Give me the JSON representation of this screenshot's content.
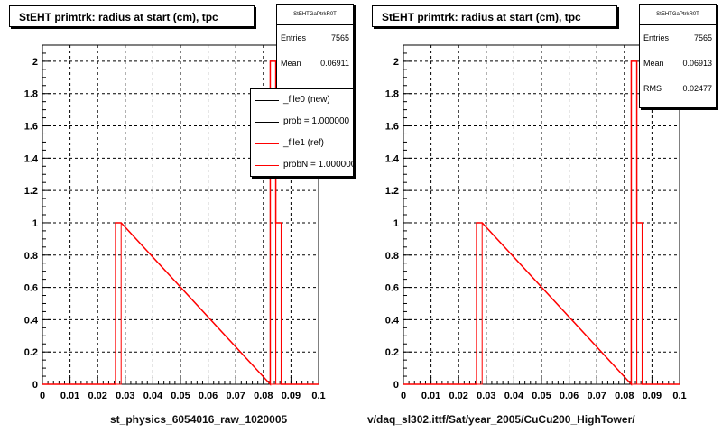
{
  "colors": {
    "reference_hist": "#ff0000",
    "new_hist": "#000000",
    "grid": "#000000",
    "background": "#ffffff"
  },
  "panels": [
    {
      "title": "StEHT primtrk: radius at start (cm), tpc",
      "stats": {
        "name": "StEHTGaPtrkR0T",
        "rows": [
          {
            "label": "Entries",
            "value": "7565"
          },
          {
            "label": "Mean",
            "value": "0.06911"
          }
        ]
      },
      "legend": [
        {
          "label": "_file0 (new)",
          "color": "#000000"
        },
        {
          "label": "prob = 1.000000",
          "color": "#000000"
        },
        {
          "label": "_file1 (ref)",
          "color": "#ff0000"
        },
        {
          "label": "probN = 1.000000",
          "color": "#ff0000"
        }
      ],
      "xlabel": "st_physics_6054016_raw_1020005"
    },
    {
      "title": "StEHT primtrk: radius at start (cm), tpc",
      "stats": {
        "name": "StEHTGaPtrkR0T",
        "rows": [
          {
            "label": "Entries",
            "value": "7565"
          },
          {
            "label": "Mean",
            "value": "0.06913"
          },
          {
            "label": "RMS",
            "value": "0.02477"
          }
        ]
      },
      "legend": [],
      "xlabel": "v/daq_sl302.ittf/Sat/year_2005/CuCu200_HighTower/"
    }
  ],
  "chart_data": [
    {
      "type": "histogram",
      "title": "StEHT primtrk: radius at start (cm), tpc",
      "xlabel": "st_physics_6054016_raw_1020005",
      "xlim": [
        0,
        0.1
      ],
      "ylim": [
        0,
        2.1
      ],
      "x_ticks": [
        "0",
        "0.01",
        "0.02",
        "0.03",
        "0.04",
        "0.05",
        "0.06",
        "0.07",
        "0.08",
        "0.09",
        "0.1"
      ],
      "y_ticks": [
        "0",
        "0.2",
        "0.4",
        "0.6",
        "0.8",
        "1",
        "1.2",
        "1.4",
        "1.6",
        "1.8",
        "2"
      ],
      "grid": true,
      "series": [
        {
          "name": "_file1 (ref)",
          "color": "#ff0000",
          "bins": [
            {
              "x0": 0.0265,
              "x1": 0.0285,
              "y": 1
            },
            {
              "x0": 0.0825,
              "x1": 0.0845,
              "y": 2
            },
            {
              "x0": 0.0845,
              "x1": 0.0865,
              "y": 1
            }
          ]
        }
      ]
    },
    {
      "type": "histogram",
      "title": "StEHT primtrk: radius at start (cm), tpc",
      "xlabel": "v/daq_sl302.ittf/Sat/year_2005/CuCu200_HighTower/",
      "xlim": [
        0,
        0.1
      ],
      "ylim": [
        0,
        2.1
      ],
      "x_ticks": [
        "0",
        "0.01",
        "0.02",
        "0.03",
        "0.04",
        "0.05",
        "0.06",
        "0.07",
        "0.08",
        "0.09",
        "0.1"
      ],
      "y_ticks": [
        "0",
        "0.2",
        "0.4",
        "0.6",
        "0.8",
        "1",
        "1.2",
        "1.4",
        "1.6",
        "1.8",
        "2"
      ],
      "grid": true,
      "series": [
        {
          "color": "#ff0000",
          "bins": [
            {
              "x0": 0.0265,
              "x1": 0.0285,
              "y": 1
            },
            {
              "x0": 0.0825,
              "x1": 0.0845,
              "y": 2
            },
            {
              "x0": 0.0845,
              "x1": 0.0865,
              "y": 1
            }
          ]
        }
      ]
    }
  ]
}
